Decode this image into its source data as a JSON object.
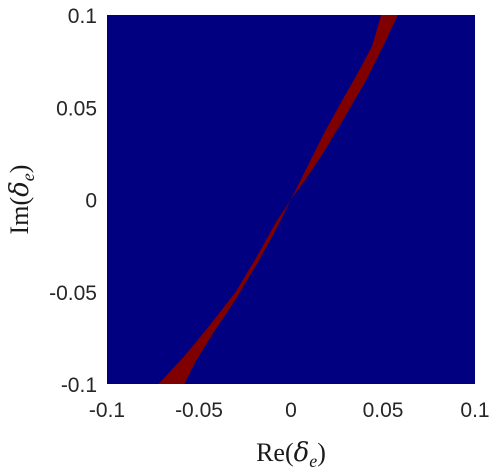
{
  "chart_data": {
    "type": "heatmap",
    "title": "",
    "xlabel": {
      "prefix": "Re(",
      "symbol": "δ",
      "subscript": "e",
      "suffix": ")"
    },
    "ylabel": {
      "prefix": "Im(",
      "symbol": "δ",
      "subscript": "e",
      "suffix": ")"
    },
    "xlim": [
      -0.1,
      0.1
    ],
    "ylim": [
      -0.1,
      0.1
    ],
    "xticks": [
      -0.1,
      -0.05,
      0,
      0.05,
      0.1
    ],
    "yticks": [
      -0.1,
      -0.05,
      0,
      0.05,
      0.1
    ],
    "xtick_labels": [
      "-0.1",
      "-0.05",
      "0",
      "0.05",
      "0.1"
    ],
    "ytick_labels": [
      "0.1",
      "0.05",
      "0",
      "-0.05",
      "-0.1"
    ],
    "grid": false,
    "background_color": "#000080",
    "region_color": "#800000",
    "region": {
      "description_points_upper_edge": [
        {
          "x": -0.072,
          "y": -0.1
        },
        {
          "x": -0.058,
          "y": -0.085
        },
        {
          "x": -0.044,
          "y": -0.068
        },
        {
          "x": -0.03,
          "y": -0.05
        },
        {
          "x": -0.018,
          "y": -0.03
        },
        {
          "x": -0.008,
          "y": -0.012
        },
        {
          "x": 0.0,
          "y": 0.0
        },
        {
          "x": 0.008,
          "y": 0.016
        },
        {
          "x": 0.018,
          "y": 0.036
        },
        {
          "x": 0.028,
          "y": 0.054
        },
        {
          "x": 0.036,
          "y": 0.068
        },
        {
          "x": 0.044,
          "y": 0.083
        },
        {
          "x": 0.049,
          "y": 0.1
        }
      ],
      "description_points_lower_edge": [
        {
          "x": 0.058,
          "y": 0.1
        },
        {
          "x": 0.05,
          "y": 0.083
        },
        {
          "x": 0.041,
          "y": 0.065
        },
        {
          "x": 0.03,
          "y": 0.046
        },
        {
          "x": 0.018,
          "y": 0.026
        },
        {
          "x": 0.008,
          "y": 0.011
        },
        {
          "x": 0.0,
          "y": 0.0
        },
        {
          "x": -0.008,
          "y": -0.016
        },
        {
          "x": -0.018,
          "y": -0.034
        },
        {
          "x": -0.03,
          "y": -0.054
        },
        {
          "x": -0.042,
          "y": -0.072
        },
        {
          "x": -0.052,
          "y": -0.088
        },
        {
          "x": -0.058,
          "y": -0.1
        }
      ]
    }
  }
}
